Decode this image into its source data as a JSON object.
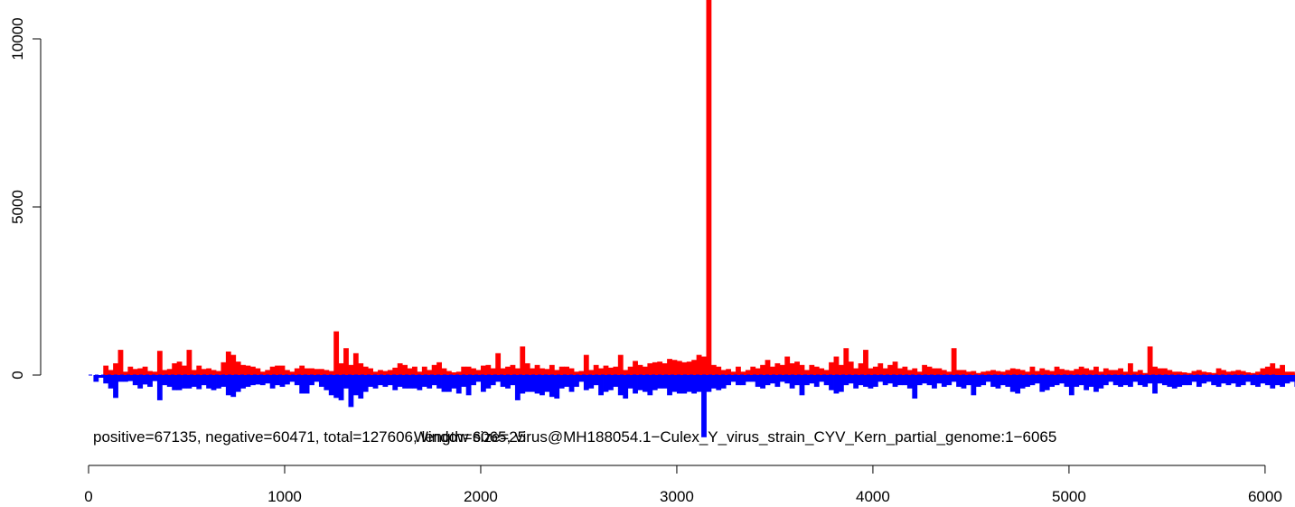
{
  "chart_data": {
    "type": "bar",
    "title": "",
    "xlabel": "",
    "ylabel": "",
    "xlim": [
      0,
      6065
    ],
    "ylim": [
      -2000,
      11000
    ],
    "x_ticks": [
      0,
      1000,
      2000,
      3000,
      4000,
      5000,
      6000
    ],
    "y_ticks": [
      0,
      5000,
      10000
    ],
    "grid": false,
    "legend": "none",
    "caption_left": "positive=67135, negative=60471, total=127606, length=6065, virus@MH188054.1−Culex_Y_virus_strain_CYV_Kern_partial_genome:1−6065",
    "caption_center": "Window size=25",
    "colors": {
      "positive": "#ff0000",
      "negative": "#0000ff"
    },
    "bin_width": 25,
    "bin_start": 25,
    "series": [
      {
        "name": "positive",
        "color": "#ff0000",
        "values": [
          0,
          0,
          280,
          150,
          350,
          750,
          100,
          250,
          180,
          200,
          250,
          120,
          100,
          720,
          150,
          180,
          350,
          400,
          280,
          750,
          150,
          280,
          180,
          200,
          150,
          120,
          380,
          700,
          600,
          400,
          300,
          280,
          250,
          200,
          100,
          150,
          250,
          280,
          280,
          150,
          100,
          200,
          280,
          200,
          200,
          180,
          180,
          150,
          120,
          1300,
          350,
          800,
          300,
          650,
          350,
          250,
          200,
          100,
          150,
          120,
          150,
          220,
          350,
          300,
          200,
          250,
          100,
          250,
          150,
          300,
          380,
          200,
          120,
          80,
          100,
          250,
          250,
          200,
          150,
          280,
          300,
          200,
          650,
          200,
          250,
          300,
          200,
          850,
          350,
          200,
          300,
          200,
          180,
          300,
          150,
          250,
          250,
          200,
          100,
          120,
          600,
          150,
          300,
          200,
          280,
          220,
          250,
          600,
          150,
          250,
          420,
          300,
          250,
          350,
          380,
          400,
          350,
          480,
          450,
          420,
          380,
          400,
          450,
          600,
          550,
          11500,
          300,
          250,
          150,
          180,
          100,
          250,
          100,
          150,
          250,
          200,
          300,
          450,
          250,
          350,
          300,
          550,
          350,
          400,
          300,
          150,
          300,
          250,
          200,
          150,
          380,
          550,
          300,
          800,
          400,
          200,
          350,
          750,
          200,
          250,
          350,
          200,
          300,
          400,
          200,
          250,
          150,
          200,
          100,
          300,
          250,
          200,
          200,
          150,
          100,
          800,
          150,
          150,
          100,
          120,
          60,
          100,
          120,
          150,
          120,
          100,
          150,
          200,
          180,
          150,
          100,
          250,
          120,
          200,
          150,
          120,
          250,
          180,
          150,
          130,
          180,
          250,
          200,
          150,
          250,
          100,
          200,
          150,
          150,
          200,
          100,
          350,
          100,
          150,
          60,
          850,
          250,
          200,
          200,
          150,
          100,
          100,
          80,
          60,
          120,
          150,
          100,
          80,
          60,
          200,
          150,
          100,
          120,
          150,
          120,
          80,
          60,
          100,
          200,
          250,
          350,
          200,
          300,
          100,
          100,
          50
        ]
      },
      {
        "name": "negative",
        "color": "#0000ff",
        "values": [
          -200,
          -80,
          -250,
          -400,
          -680,
          -200,
          -200,
          -180,
          -300,
          -400,
          -280,
          -350,
          -180,
          -750,
          -300,
          -350,
          -450,
          -450,
          -400,
          -400,
          -350,
          -420,
          -300,
          -400,
          -450,
          -400,
          -350,
          -600,
          -650,
          -500,
          -400,
          -350,
          -300,
          -280,
          -300,
          -250,
          -400,
          -300,
          -350,
          -280,
          -200,
          -300,
          -550,
          -550,
          -300,
          -200,
          -350,
          -450,
          -600,
          -680,
          -750,
          -400,
          -950,
          -600,
          -700,
          -500,
          -350,
          -400,
          -300,
          -350,
          -300,
          -450,
          -350,
          -400,
          -400,
          -400,
          -450,
          -350,
          -400,
          -300,
          -400,
          -500,
          -500,
          -400,
          -550,
          -350,
          -600,
          -300,
          -200,
          -500,
          -400,
          -300,
          -200,
          -350,
          -400,
          -300,
          -750,
          -550,
          -500,
          -500,
          -550,
          -600,
          -500,
          -650,
          -700,
          -400,
          -350,
          -500,
          -350,
          -200,
          -450,
          -400,
          -300,
          -600,
          -500,
          -450,
          -350,
          -600,
          -700,
          -400,
          -550,
          -450,
          -500,
          -600,
          -450,
          -400,
          -400,
          -600,
          -500,
          -550,
          -550,
          -500,
          -550,
          -500,
          -1850,
          -500,
          -400,
          -450,
          -400,
          -300,
          -200,
          -300,
          -300,
          -200,
          -200,
          -350,
          -400,
          -300,
          -250,
          -350,
          -200,
          -250,
          -400,
          -300,
          -600,
          -300,
          -250,
          -350,
          -200,
          -300,
          -450,
          -550,
          -500,
          -300,
          -250,
          -400,
          -300,
          -350,
          -400,
          -350,
          -200,
          -300,
          -250,
          -350,
          -300,
          -300,
          -400,
          -700,
          -300,
          -250,
          -300,
          -400,
          -250,
          -350,
          -300,
          -200,
          -350,
          -400,
          -300,
          -600,
          -350,
          -300,
          -200,
          -350,
          -400,
          -300,
          -350,
          -500,
          -550,
          -400,
          -350,
          -300,
          -250,
          -500,
          -450,
          -350,
          -300,
          -250,
          -350,
          -600,
          -350,
          -300,
          -450,
          -350,
          -500,
          -400,
          -300,
          -200,
          -300,
          -350,
          -300,
          -350,
          -200,
          -300,
          -350,
          -250,
          -550,
          -250,
          -300,
          -350,
          -400,
          -350,
          -300,
          -300,
          -200,
          -350,
          -250,
          -200,
          -300,
          -350,
          -250,
          -300,
          -250,
          -350,
          -300,
          -200,
          -300,
          -350,
          -250,
          -300,
          -400,
          -300,
          -350,
          -250,
          -200,
          -350,
          -550,
          -300,
          -200
        ]
      }
    ]
  }
}
